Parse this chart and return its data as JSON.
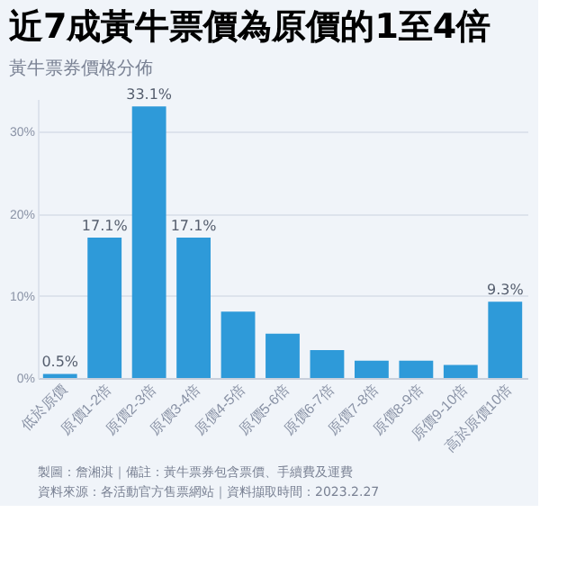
{
  "chart_data": {
    "type": "bar",
    "title": "近7成黃牛票價為原價的1至4倍",
    "subtitle": "黃牛票券價格分佈",
    "categories": [
      "低於原價",
      "原價1-2倍",
      "原價2-3倍",
      "原價3-4倍",
      "原價4-5倍",
      "原價5-6倍",
      "原價6-7倍",
      "原價7-8倍",
      "原價8-9倍",
      "原價9-10倍",
      "高於原價10倍"
    ],
    "values": [
      0.5,
      17.1,
      33.1,
      17.1,
      8.1,
      5.4,
      3.4,
      2.1,
      2.1,
      1.6,
      9.3
    ],
    "value_labels": [
      "0.5%",
      "17.1%",
      "33.1%",
      "17.1%",
      null,
      null,
      null,
      null,
      null,
      null,
      "9.3%"
    ],
    "color": "#2e9ad9",
    "ylim": [
      0,
      34
    ],
    "yticks": [
      {
        "value": 0,
        "label": "0%"
      },
      {
        "value": 10,
        "label": "10%"
      },
      {
        "value": 20,
        "label": "20%"
      },
      {
        "value": 30,
        "label": "30%"
      }
    ],
    "grid": "y",
    "annotations": [
      "製圖：詹湘淇｜備註：黃牛票券包含票價、手續費及運費",
      "資料來源：各活動官方售票網站｜資料擷取時間：2023.2.27"
    ]
  }
}
